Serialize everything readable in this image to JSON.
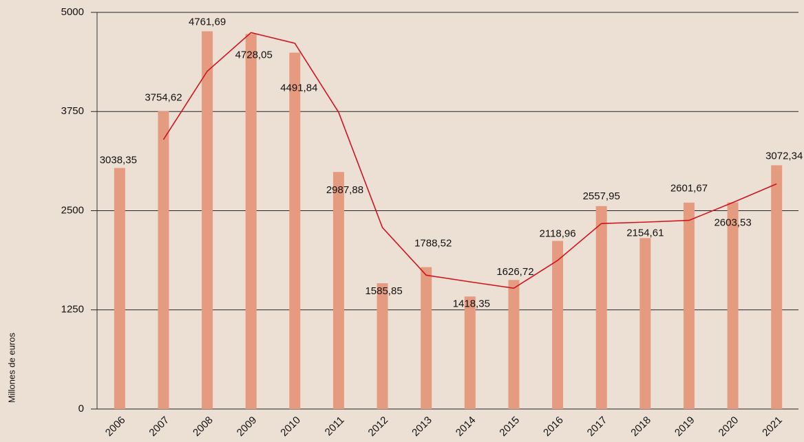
{
  "chart_data": {
    "type": "bar",
    "y_axis_label": "Millones de euros",
    "categories": [
      "2006",
      "2007",
      "2008",
      "2009",
      "2010",
      "2011",
      "2012",
      "2013",
      "2014",
      "2015",
      "2016",
      "2017",
      "2018",
      "2019",
      "2020",
      "2021"
    ],
    "series": [
      {
        "type": "bar",
        "color": "#e59b7f",
        "values": [
          3038.35,
          3754.62,
          4761.69,
          4728.05,
          4491.84,
          2987.88,
          1585.85,
          1788.52,
          1418.35,
          1626.72,
          2118.96,
          2557.95,
          2154.61,
          2601.67,
          2603.53,
          3072.34
        ],
        "value_labels": [
          "3038,35",
          "3754,62",
          "4761,69",
          "4728,05",
          "4491,84",
          "2987,88",
          "1585,85",
          "1788,52",
          "1418,35",
          "1626,72",
          "2118,96",
          "2557,95",
          "2154,61",
          "2601,67",
          "2603,53",
          "3072,34"
        ]
      },
      {
        "type": "line",
        "color": "#d0141e",
        "values": [
          null,
          3396,
          4258,
          4745,
          4610,
          3740,
          2287,
          1687,
          1603,
          1523,
          1873,
          2338,
          2356,
          2378,
          2603,
          2838
        ]
      }
    ],
    "ylim": [
      0,
      5000
    ],
    "yticks": [
      0,
      1250,
      2500,
      3750,
      5000
    ],
    "grid": true
  }
}
